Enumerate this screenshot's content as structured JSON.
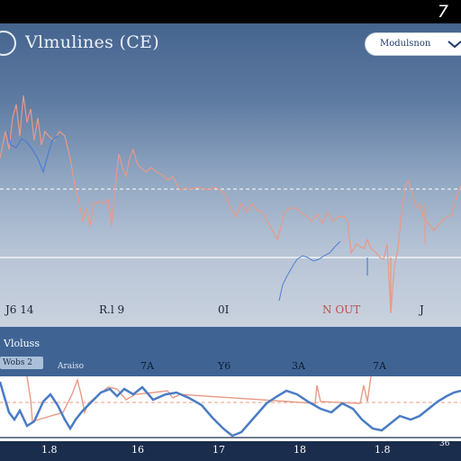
{
  "top_bar": {
    "number": "7"
  },
  "header": {
    "title": "Vlmulines (CE)",
    "dropdown_label": "Modulsnon"
  },
  "upper_chart": {
    "ticks": [
      {
        "label": "J6 14",
        "color": "dark"
      },
      {
        "label": "R.l 9",
        "color": "dark"
      },
      {
        "label": "0I",
        "color": "dark"
      },
      {
        "label": "N OUT",
        "color": "red"
      },
      {
        "label": "J",
        "color": "dark"
      }
    ]
  },
  "lower_panel": {
    "title": "Vloluss",
    "badge": "Wobs 2",
    "subtitle": "Araiso",
    "ticks": [
      "7A",
      "Y6",
      "3A",
      "7A"
    ],
    "bottom_ticks": [
      "1.8",
      "16",
      "17",
      "18",
      "1.8"
    ],
    "bottom_mark": "36"
  },
  "colors": {
    "header_bg": "#45648e",
    "series_blue": "#4a7cc4",
    "series_red": "#e38b7a",
    "lower_bg": "#3f6494",
    "bottom_bg": "#1b2d4c"
  }
}
